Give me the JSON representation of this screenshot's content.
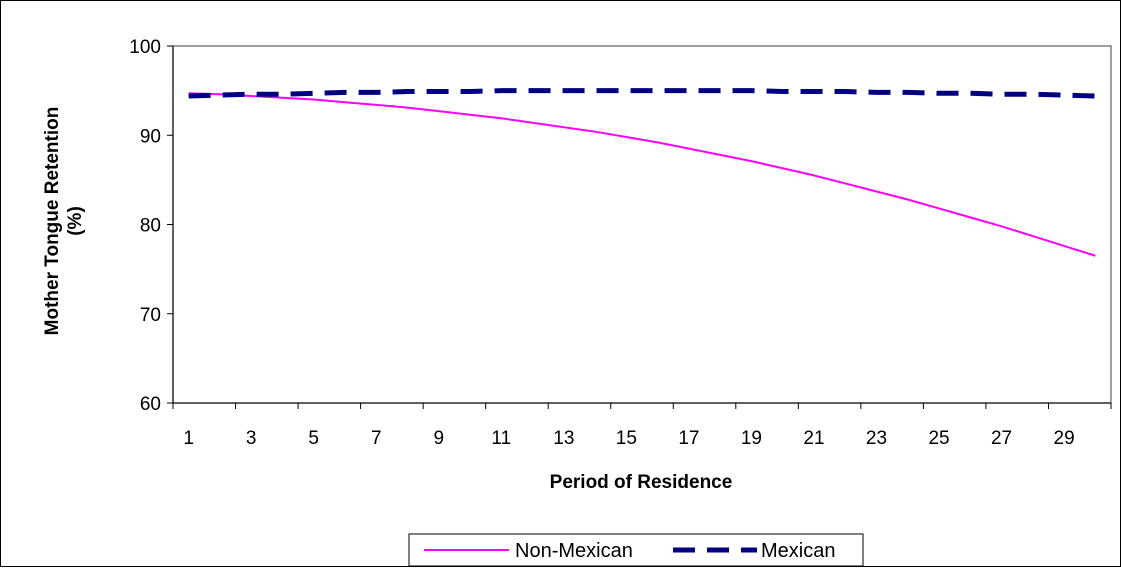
{
  "chart_data": {
    "type": "line",
    "title": "",
    "xlabel": "Period of Residence",
    "ylabel_line1": "Mother Tongue Retention",
    "ylabel_line2": "(%)",
    "ylim": [
      60,
      100
    ],
    "yticks": [
      60,
      70,
      80,
      90,
      100
    ],
    "x": [
      1,
      2,
      3,
      4,
      5,
      6,
      7,
      8,
      9,
      10,
      11,
      12,
      13,
      14,
      15,
      16,
      17,
      18,
      19,
      20,
      21,
      22,
      23,
      24,
      25,
      26,
      27,
      28,
      29,
      30
    ],
    "xtick_labels": [
      "1",
      "3",
      "5",
      "7",
      "9",
      "11",
      "13",
      "15",
      "17",
      "19",
      "21",
      "23",
      "25",
      "27",
      "29"
    ],
    "grid": false,
    "legend_position": "bottom",
    "series": [
      {
        "name": "Non-Mexican",
        "color": "#ff00ff",
        "style": "solid",
        "values": [
          94.7,
          94.6,
          94.4,
          94.2,
          94.0,
          93.7,
          93.4,
          93.1,
          92.7,
          92.3,
          91.9,
          91.4,
          90.9,
          90.4,
          89.8,
          89.2,
          88.5,
          87.8,
          87.1,
          86.3,
          85.5,
          84.6,
          83.7,
          82.8,
          81.8,
          80.8,
          79.8,
          78.7,
          77.6,
          76.5
        ]
      },
      {
        "name": "Mexican",
        "color": "#000080",
        "style": "dashed",
        "values": [
          94.4,
          94.5,
          94.6,
          94.6,
          94.7,
          94.8,
          94.8,
          94.9,
          94.9,
          94.9,
          95.0,
          95.0,
          95.0,
          95.0,
          95.0,
          95.0,
          95.0,
          95.0,
          95.0,
          94.9,
          94.9,
          94.9,
          94.8,
          94.8,
          94.7,
          94.7,
          94.6,
          94.6,
          94.5,
          94.4
        ]
      }
    ]
  }
}
